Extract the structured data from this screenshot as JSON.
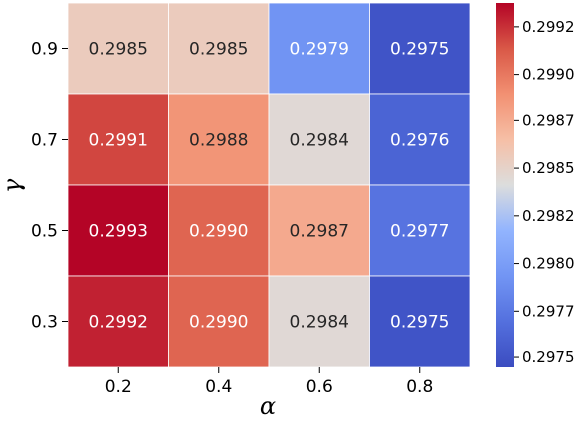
{
  "chart_data": {
    "type": "heatmap",
    "title": "",
    "xlabel": "α",
    "ylabel": "γ",
    "x_categories": [
      "0.2",
      "0.4",
      "0.6",
      "0.8"
    ],
    "y_categories": [
      "0.9",
      "0.7",
      "0.5",
      "0.3"
    ],
    "values": [
      [
        0.2985,
        0.2985,
        0.2979,
        0.2975
      ],
      [
        0.2991,
        0.2988,
        0.2984,
        0.2976
      ],
      [
        0.2993,
        0.299,
        0.2987,
        0.2977
      ],
      [
        0.2992,
        0.299,
        0.2984,
        0.2975
      ]
    ],
    "cell_labels": [
      [
        "0.2985",
        "0.2985",
        "0.2979",
        "0.2975"
      ],
      [
        "0.2991",
        "0.2988",
        "0.2984",
        "0.2976"
      ],
      [
        "0.2993",
        "0.2990",
        "0.2987",
        "0.2977"
      ],
      [
        "0.2992",
        "0.2990",
        "0.2984",
        "0.2975"
      ]
    ],
    "colormap": "coolwarm",
    "colorbar": {
      "vmin": 0.29745,
      "vmax": 0.29928,
      "ticks": [
        0.2975,
        0.29773,
        0.29797,
        0.29821,
        0.29845,
        0.29869,
        0.29892,
        0.29916
      ],
      "tick_labels": [
        "0.2975",
        "0.2977",
        "0.2980",
        "0.2982",
        "0.2985",
        "0.2987",
        "0.2990",
        "0.2992"
      ]
    },
    "grid": false,
    "legend": "colorbar-right"
  }
}
